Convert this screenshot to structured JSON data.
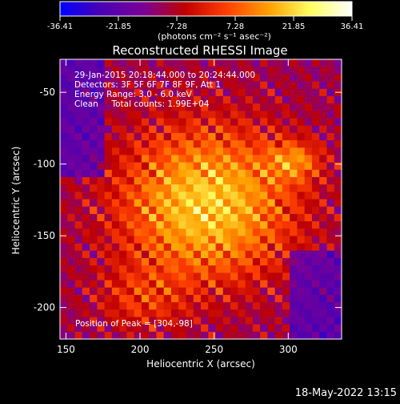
{
  "colorbar": {
    "ticks": [
      "-36.41",
      "-21.85",
      "-7.28",
      "7.28",
      "21.85",
      "36.41"
    ],
    "unit_label": "(photons cm⁻² s⁻¹ asec⁻²)",
    "colors": [
      "#0000ff",
      "#4b00b3",
      "#7a0096",
      "#c00000",
      "#ff4000",
      "#ffa000",
      "#ffff60",
      "#ffffff"
    ]
  },
  "chart_data": {
    "type": "heatmap",
    "title": "Reconstructed RHESSI Image",
    "xlabel": "Heliocentric X (arcsec)",
    "ylabel": "Heliocentric Y (arcsec)",
    "xlim": [
      146,
      336
    ],
    "ylim": [
      -222,
      -27
    ],
    "zlim": [
      -36.41,
      36.41
    ],
    "x_ticks": [
      150,
      200,
      250,
      300
    ],
    "y_ticks": [
      -50,
      -100,
      -150,
      -200
    ],
    "peak": [
      304,
      -98
    ],
    "annotations": [
      "29-Jan-2015 20:18:44.000 to 20:24:44.000",
      "Detectors: 3F 5F 6F 7F 8F 9F, Att 1",
      "Energy Range: 3.0 - 6.0 keV",
      "Clean     Total counts: 1.99E+04",
      "Position of Peak = [304,-98]"
    ]
  },
  "footer": {
    "timestamp": "18-May-2022 13:15"
  }
}
